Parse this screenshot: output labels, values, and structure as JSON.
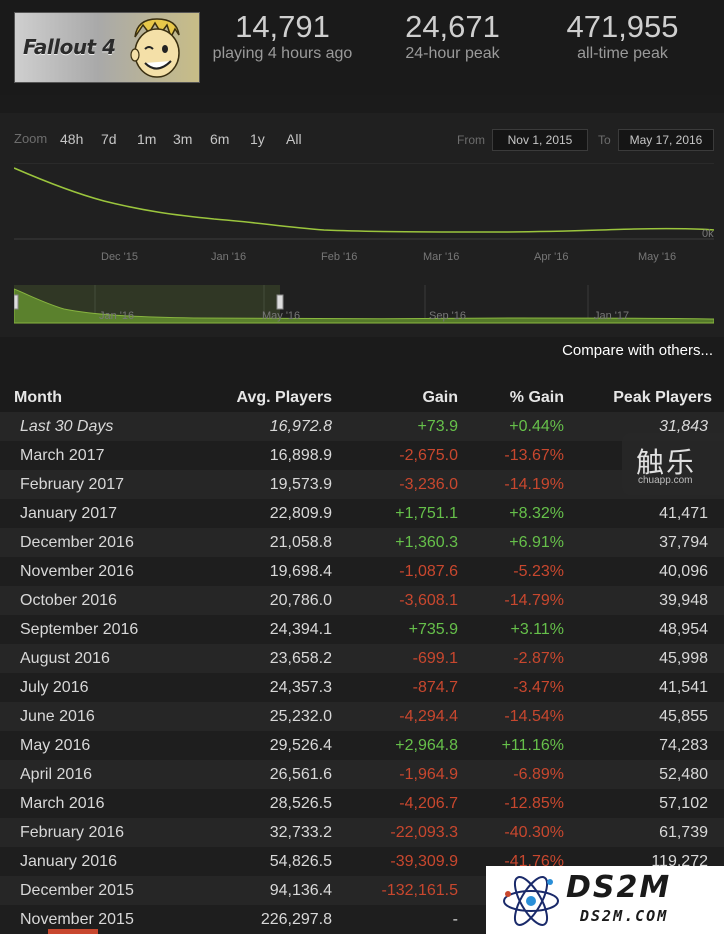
{
  "header": {
    "logo_text": "Fallout 4",
    "stats": [
      {
        "value": "14,791",
        "label": "playing 4 hours ago"
      },
      {
        "value": "24,671",
        "label": "24-hour peak"
      },
      {
        "value": "471,955",
        "label": "all-time peak"
      }
    ]
  },
  "chart": {
    "zoom_label": "Zoom",
    "zoom_options": [
      "48h",
      "7d",
      "1m",
      "3m",
      "6m",
      "1y",
      "All"
    ],
    "from_label": "From",
    "from_date": "Nov 1, 2015",
    "to_label": "To",
    "to_date": "May 17, 2016",
    "y_axis_label": "0k",
    "x_ticks": [
      "Dec '15",
      "Jan '16",
      "Feb '16",
      "Mar '16",
      "Apr '16",
      "May '16"
    ],
    "nav_ticks": [
      "Jan '16",
      "May '16",
      "Sep '16",
      "Jan '17"
    ],
    "line_color": "#9bc53d",
    "area_color": "#557a2a"
  },
  "compare_link": "Compare with others...",
  "table": {
    "headers": {
      "month": "Month",
      "avg": "Avg. Players",
      "gain": "Gain",
      "pct": "% Gain",
      "peak": "Peak Players"
    },
    "rows": [
      {
        "month": "Last 30 Days",
        "avg": "16,972.8",
        "gain": "+73.9",
        "pct": "+0.44%",
        "peak": "31,843",
        "trend": "pos",
        "italic": true
      },
      {
        "month": "March 2017",
        "avg": "16,898.9",
        "gain": "-2,675.0",
        "pct": "-13.67%",
        "peak": "",
        "trend": "neg"
      },
      {
        "month": "February 2017",
        "avg": "19,573.9",
        "gain": "-3,236.0",
        "pct": "-14.19%",
        "peak": "",
        "trend": "neg"
      },
      {
        "month": "January 2017",
        "avg": "22,809.9",
        "gain": "+1,751.1",
        "pct": "+8.32%",
        "peak": "41,471",
        "trend": "pos"
      },
      {
        "month": "December 2016",
        "avg": "21,058.8",
        "gain": "+1,360.3",
        "pct": "+6.91%",
        "peak": "37,794",
        "trend": "pos"
      },
      {
        "month": "November 2016",
        "avg": "19,698.4",
        "gain": "-1,087.6",
        "pct": "-5.23%",
        "peak": "40,096",
        "trend": "neg"
      },
      {
        "month": "October 2016",
        "avg": "20,786.0",
        "gain": "-3,608.1",
        "pct": "-14.79%",
        "peak": "39,948",
        "trend": "neg"
      },
      {
        "month": "September 2016",
        "avg": "24,394.1",
        "gain": "+735.9",
        "pct": "+3.11%",
        "peak": "48,954",
        "trend": "pos"
      },
      {
        "month": "August 2016",
        "avg": "23,658.2",
        "gain": "-699.1",
        "pct": "-2.87%",
        "peak": "45,998",
        "trend": "neg"
      },
      {
        "month": "July 2016",
        "avg": "24,357.3",
        "gain": "-874.7",
        "pct": "-3.47%",
        "peak": "41,541",
        "trend": "neg"
      },
      {
        "month": "June 2016",
        "avg": "25,232.0",
        "gain": "-4,294.4",
        "pct": "-14.54%",
        "peak": "45,855",
        "trend": "neg"
      },
      {
        "month": "May 2016",
        "avg": "29,526.4",
        "gain": "+2,964.8",
        "pct": "+11.16%",
        "peak": "74,283",
        "trend": "pos"
      },
      {
        "month": "April 2016",
        "avg": "26,561.6",
        "gain": "-1,964.9",
        "pct": "-6.89%",
        "peak": "52,480",
        "trend": "neg"
      },
      {
        "month": "March 2016",
        "avg": "28,526.5",
        "gain": "-4,206.7",
        "pct": "-12.85%",
        "peak": "57,102",
        "trend": "neg"
      },
      {
        "month": "February 2016",
        "avg": "32,733.2",
        "gain": "-22,093.3",
        "pct": "-40.30%",
        "peak": "61,739",
        "trend": "neg"
      },
      {
        "month": "January 2016",
        "avg": "54,826.5",
        "gain": "-39,309.9",
        "pct": "-41.76%",
        "peak": "119,272",
        "trend": "neg"
      },
      {
        "month": "December 2015",
        "avg": "94,136.4",
        "gain": "-132,161.5",
        "pct": "",
        "peak": "",
        "trend": "neg"
      },
      {
        "month": "November 2015",
        "avg": "226,297.8",
        "gain": "-",
        "pct": "",
        "peak": "",
        "trend": "neutral"
      }
    ]
  },
  "watermarks": {
    "chuapp_big": "触乐",
    "chuapp_small": "chuapp.com",
    "ds2m_title": "DS2M",
    "ds2m_url": "DS2M.COM"
  }
}
